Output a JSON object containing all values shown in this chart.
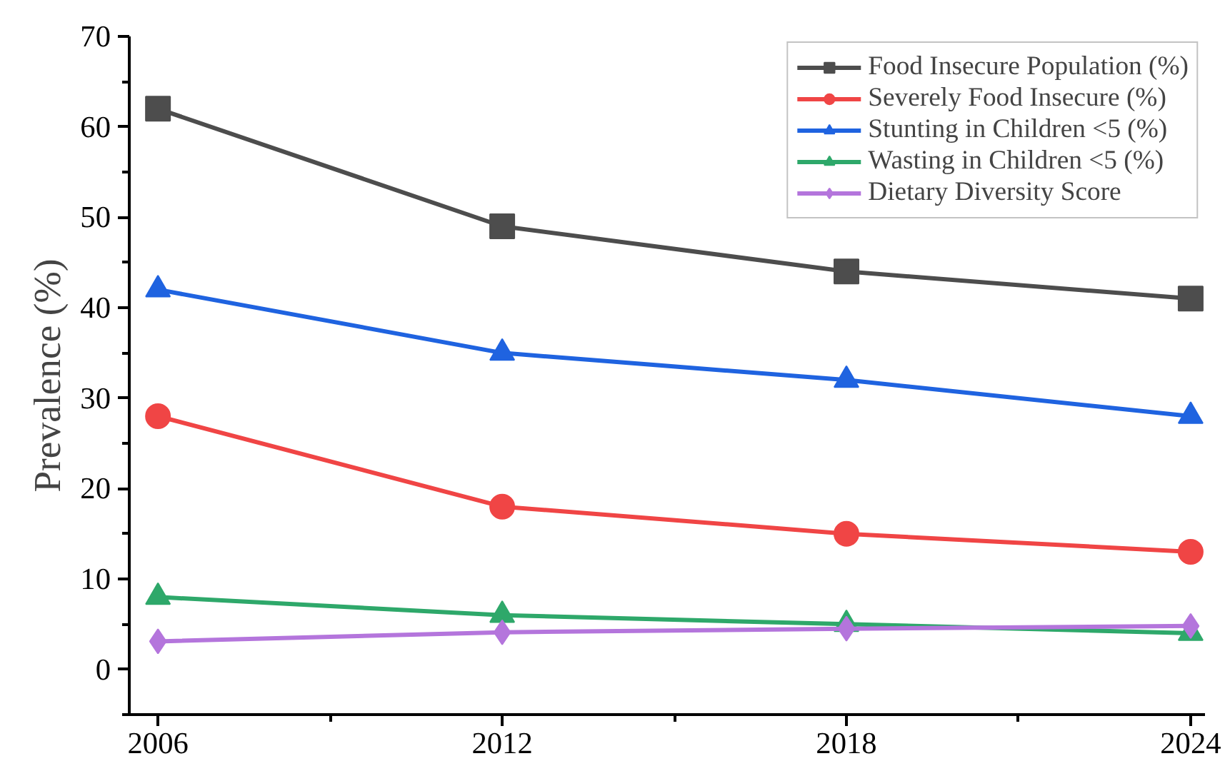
{
  "chart_data": {
    "type": "line",
    "ylabel": "Prevalence (%)",
    "x": [
      2006,
      2012,
      2018,
      2024
    ],
    "xlim": [
      2005.5,
      2024.25
    ],
    "xticks": [
      2006,
      {
        "value": 2009,
        "label": null
      },
      2012,
      {
        "value": 2015,
        "label": null
      },
      2018,
      {
        "value": 2021,
        "label": null
      },
      2024
    ],
    "ylim": [
      -5,
      70
    ],
    "yticks": [
      {
        "value": -5,
        "label": null
      },
      0,
      {
        "value": 5,
        "label": null
      },
      10,
      {
        "value": 15,
        "label": null
      },
      20,
      {
        "value": 25,
        "label": null
      },
      30,
      {
        "value": 35,
        "label": null
      },
      40,
      {
        "value": 45,
        "label": null
      },
      50,
      {
        "value": 55,
        "label": null
      },
      60,
      {
        "value": 65,
        "label": null
      },
      70
    ],
    "grid": false,
    "legend": "top right",
    "series": [
      {
        "name": "Food Insecure Population (%)",
        "color": "#4d4d4d",
        "marker": "square",
        "values": [
          62,
          49,
          44,
          41
        ]
      },
      {
        "name": "Severely Food Insecure (%)",
        "color": "#f04545",
        "marker": "circle",
        "values": [
          28,
          18,
          15,
          13
        ]
      },
      {
        "name": "Stunting in Children <5 (%)",
        "color": "#1f63e0",
        "marker": "triangle",
        "values": [
          42,
          35,
          32,
          28
        ]
      },
      {
        "name": "Wasting in Children <5 (%)",
        "color": "#2ea86a",
        "marker": "triangle",
        "values": [
          8,
          6,
          5,
          4
        ]
      },
      {
        "name": "Dietary Diversity Score",
        "color": "#b475dc",
        "marker": "diamond",
        "values": [
          3.1,
          4.1,
          4.5,
          4.8
        ]
      }
    ]
  }
}
